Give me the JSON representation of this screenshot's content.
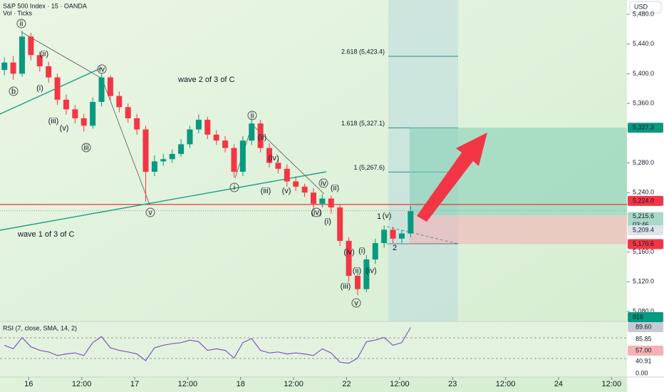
{
  "chart_data": {
    "type": "candlestick",
    "title": "S&P 500 Index · 15 · OANDA",
    "volume_label": "Vol · Ticks",
    "currency": "USD",
    "x": [
      1,
      3,
      5,
      7,
      9,
      11,
      13,
      15,
      17,
      19,
      21,
      23,
      25,
      27,
      29,
      31,
      33,
      35,
      37,
      39,
      41,
      43,
      45,
      47,
      49,
      51,
      53,
      55,
      57,
      59,
      61,
      63,
      65,
      67,
      69,
      71,
      73,
      75,
      77,
      79,
      81,
      83,
      85,
      87,
      89,
      91,
      93
    ],
    "ohlc": [
      [
        5405,
        5422,
        5398,
        5415
      ],
      [
        5415,
        5424,
        5392,
        5400
      ],
      [
        5400,
        5458,
        5396,
        5450
      ],
      [
        5450,
        5455,
        5418,
        5425
      ],
      [
        5425,
        5430,
        5403,
        5410
      ],
      [
        5410,
        5416,
        5388,
        5395
      ],
      [
        5395,
        5400,
        5358,
        5365
      ],
      [
        5365,
        5372,
        5345,
        5352
      ],
      [
        5352,
        5358,
        5333,
        5340
      ],
      [
        5340,
        5346,
        5322,
        5330
      ],
      [
        5330,
        5368,
        5326,
        5362
      ],
      [
        5362,
        5400,
        5356,
        5395
      ],
      [
        5395,
        5398,
        5364,
        5370
      ],
      [
        5370,
        5376,
        5348,
        5355
      ],
      [
        5355,
        5360,
        5334,
        5340
      ],
      [
        5340,
        5346,
        5318,
        5325
      ],
      [
        5325,
        5330,
        5228,
        5268
      ],
      [
        5268,
        5290,
        5262,
        5282
      ],
      [
        5282,
        5292,
        5276,
        5285
      ],
      [
        5285,
        5298,
        5280,
        5292
      ],
      [
        5292,
        5312,
        5288,
        5305
      ],
      [
        5305,
        5330,
        5300,
        5325
      ],
      [
        5325,
        5345,
        5320,
        5338
      ],
      [
        5338,
        5342,
        5312,
        5318
      ],
      [
        5318,
        5324,
        5304,
        5310
      ],
      [
        5310,
        5316,
        5294,
        5300
      ],
      [
        5300,
        5305,
        5260,
        5268
      ],
      [
        5268,
        5316,
        5262,
        5310
      ],
      [
        5310,
        5340,
        5304,
        5333
      ],
      [
        5333,
        5338,
        5294,
        5300
      ],
      [
        5300,
        5306,
        5274,
        5280
      ],
      [
        5280,
        5286,
        5266,
        5272
      ],
      [
        5272,
        5278,
        5248,
        5255
      ],
      [
        5255,
        5262,
        5242,
        5248
      ],
      [
        5248,
        5252,
        5234,
        5240
      ],
      [
        5240,
        5246,
        5218,
        5225
      ],
      [
        5225,
        5238,
        5220,
        5232
      ],
      [
        5232,
        5236,
        5212,
        5220
      ],
      [
        5220,
        5224,
        5168,
        5175
      ],
      [
        5175,
        5180,
        5120,
        5128
      ],
      [
        5128,
        5132,
        5102,
        5110
      ],
      [
        5110,
        5156,
        5106,
        5150
      ],
      [
        5150,
        5178,
        5144,
        5172
      ],
      [
        5172,
        5196,
        5166,
        5190
      ],
      [
        5190,
        5194,
        5172,
        5178
      ],
      [
        5178,
        5190,
        5172,
        5185
      ],
      [
        5185,
        5222,
        5180,
        5215
      ]
    ],
    "up_color": "#089981",
    "down_color": "#f23645",
    "xlim": [
      0,
      142
    ],
    "xticks": [
      {
        "value": 6.5,
        "label": "16"
      },
      {
        "value": 18.5,
        "label": "12:00"
      },
      {
        "value": 30.5,
        "label": "17"
      },
      {
        "value": 42.5,
        "label": "12:00"
      },
      {
        "value": 54.5,
        "label": "18"
      },
      {
        "value": 66.5,
        "label": "12:00"
      },
      {
        "value": 78.5,
        "label": "22"
      },
      {
        "value": 90.5,
        "label": "12:00"
      },
      {
        "value": 102.5,
        "label": "23"
      },
      {
        "value": 114.5,
        "label": "12:00"
      },
      {
        "value": 126.5,
        "label": "24"
      },
      {
        "value": 138.5,
        "label": "12:00"
      }
    ],
    "ylim": [
      5080,
      5480
    ],
    "yticks": [
      {
        "value": 5480,
        "label": "5,480.0"
      },
      {
        "value": 5440,
        "label": "5,440.0"
      },
      {
        "value": 5400,
        "label": "5,400.0"
      },
      {
        "value": 5360,
        "label": "5,360.0"
      },
      {
        "value": 5280,
        "label": "5,280.0"
      },
      {
        "value": 5240,
        "label": "5,240.0"
      },
      {
        "value": 5160,
        "label": "5,160.0"
      },
      {
        "value": 5120,
        "label": "5,120.0"
      },
      {
        "value": 5080,
        "label": "5,080.0"
      }
    ],
    "resistance": {
      "value": 5224,
      "label": "5,224.0"
    },
    "last_price": {
      "value": 5215.6,
      "label": "5,215.6",
      "countdown": "03:46"
    },
    "position": {
      "target": {
        "value": 5327.3,
        "label": "5,327.3"
      },
      "entry": {
        "value": 5209.4,
        "label": "5,209.4"
      },
      "stop": {
        "value": 5170.6,
        "label": "5,170.6"
      }
    },
    "fib_levels": [
      {
        "value": 5423.4,
        "label": "2.618 (5,423.4)"
      },
      {
        "value": 5327.1,
        "label": "1.618 (5,327.1)"
      },
      {
        "value": 5267.6,
        "label": "1 (5,267.6)"
      }
    ],
    "volume_last": "816",
    "annotations": [
      "wave 2 of 3 of C",
      "wave 1 of 3 of C"
    ],
    "circled_labels": [
      "ii",
      "b",
      "iv",
      "iii",
      "v",
      "i",
      "ii",
      "iv",
      "(iv)",
      "v"
    ],
    "wave_labels": [
      "(ii)",
      "(i)",
      "(iii)",
      "(v)",
      "(ii)",
      "(iv)",
      "(iii)",
      "(v)",
      "(ii)",
      "(i)",
      "(iv)",
      "(iii)",
      "(i)",
      "(ii)",
      "(iv)",
      "(v)",
      "1",
      "2"
    ],
    "rsi": {
      "title": "RSI (7, close, SMA, 14, 2)",
      "ylim": [
        0,
        100
      ],
      "values": [
        55,
        48,
        70,
        52,
        45,
        42,
        35,
        38,
        40,
        35,
        60,
        72,
        50,
        45,
        42,
        38,
        25,
        50,
        55,
        58,
        60,
        65,
        62,
        45,
        48,
        45,
        30,
        60,
        68,
        45,
        40,
        42,
        38,
        40,
        38,
        35,
        48,
        40,
        22,
        20,
        30,
        62,
        65,
        70,
        55,
        60,
        89.6
      ],
      "axis_labels": [
        "89.60",
        "85.85",
        "57.00",
        "40.91",
        "0.00"
      ]
    }
  }
}
